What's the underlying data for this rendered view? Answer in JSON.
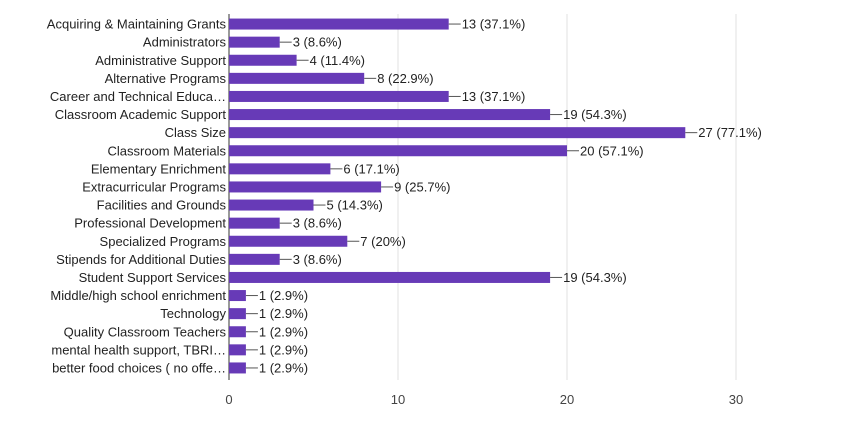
{
  "chart_data": {
    "type": "bar",
    "orientation": "horizontal",
    "categories": [
      "Acquiring & Maintaining Grants",
      "Administrators",
      "Administrative Support",
      "Alternative Programs",
      "Career and Technical Educa…",
      "Classroom Academic Support",
      "Class Size",
      "Classroom Materials",
      "Elementary Enrichment",
      "Extracurricular Programs",
      "Facilities and Grounds",
      "Professional Development",
      "Specialized Programs",
      "Stipends for Additional Duties",
      "Student Support Services",
      "Middle/high school enrichment",
      "Technology",
      "Quality Classroom Teachers",
      "mental health support, TBRI…",
      "better food choices ( no offe…"
    ],
    "values": [
      13,
      3,
      4,
      8,
      13,
      19,
      27,
      20,
      6,
      9,
      5,
      3,
      7,
      3,
      19,
      1,
      1,
      1,
      1,
      1
    ],
    "value_labels": [
      "13 (37.1%)",
      "3 (8.6%)",
      "4 (11.4%)",
      "8 (22.9%)",
      "13 (37.1%)",
      "19 (54.3%)",
      "27 (77.1%)",
      "20 (57.1%)",
      "6 (17.1%)",
      "9 (25.7%)",
      "5 (14.3%)",
      "3 (8.6%)",
      "7 (20%)",
      "3 (8.6%)",
      "19 (54.3%)",
      "1 (2.9%)",
      "1 (2.9%)",
      "1 (2.9%)",
      "1 (2.9%)",
      "1 (2.9%)"
    ],
    "xlim": [
      0,
      30
    ],
    "xticks": [
      0,
      10,
      20,
      30
    ],
    "xtick_labels": [
      "0",
      "10",
      "20",
      "30"
    ],
    "grid": true,
    "title": "",
    "xlabel": "",
    "ylabel": "",
    "colors": {
      "bar": "#673ab7",
      "grid": "#e0e0e0",
      "axis": "#333333"
    }
  }
}
